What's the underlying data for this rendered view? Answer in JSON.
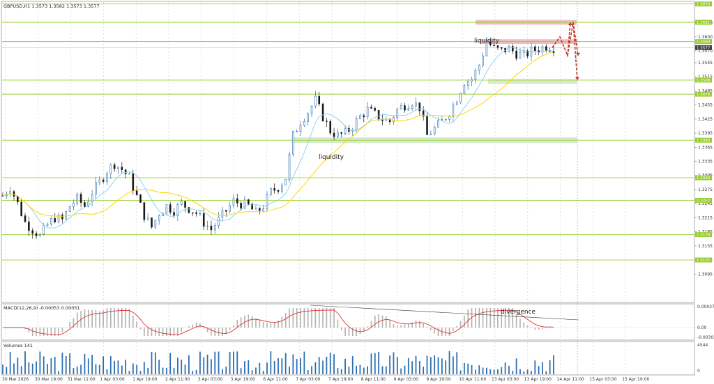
{
  "header": {
    "symbol_info": "GBPUSD,H1  1.3573 1.3582 1.3573 1.3577"
  },
  "price_axis": {
    "ticks": [
      "1.3630",
      "1.3600",
      "1.3570",
      "1.3545",
      "1.3515",
      "1.3485",
      "1.3455",
      "1.3425",
      "1.3395",
      "1.3365",
      "1.3335",
      "1.3305",
      "1.3275",
      "1.3245",
      "1.3215",
      "1.3185",
      "1.3155",
      "1.3125",
      "1.3095"
    ],
    "level_tags": [
      "1.3670",
      "1.3631",
      "1.3590",
      "1.3508",
      "1.3478",
      "1.3380",
      "1.3300",
      "1.3252",
      "1.3179",
      "1.3125"
    ],
    "current_price_tag": "1.3577"
  },
  "time_axis": {
    "labels": [
      "30 Mar 2026",
      "30 Mar 19:00",
      "31 Mar 11:00",
      "1 Apr 03:00",
      "1 Apr 19:00",
      "2 Apr 11:00",
      "3 Apr 03:00",
      "3 Apr 19:00",
      "6 Apr 11:00",
      "7 Apr 03:00",
      "7 Apr 19:00",
      "8 Apr 11:00",
      "9 Apr 03:00",
      "9 Apr 19:00",
      "10 Apr 11:00",
      "13 Apr 03:00",
      "13 Apr 19:00",
      "14 Apr 11:00",
      "15 Apr 03:00",
      "15 Apr 19:00"
    ]
  },
  "annotations": {
    "liquidity_top": "liquidity",
    "liquidity_mid": "liquidity",
    "divergence": "divergence"
  },
  "macd": {
    "label": "MACD(12,26,9) -0.00053 0.00051",
    "ticks": [
      "0.00037",
      "0.00",
      "-0.00302"
    ]
  },
  "volumes": {
    "label": "Volumes 141",
    "ticks": [
      "4544",
      "0"
    ]
  },
  "colors": {
    "up_candle": "#2e6fb0",
    "down_candle": "#1a1a1a",
    "level_line": "#9acd32",
    "resistance_zone": "#e8b4b4",
    "support_zone": "#cfe8c0",
    "ma_fast": "#87ceeb",
    "ma_slow": "#ffd700",
    "forecast_arrow": "#c0392b",
    "macd_hist": "#b0b0b0",
    "macd_signal": "#e03030",
    "volume_bar": "#2e6fb0",
    "tag_bg": "#9acd32",
    "current_tag_bg": "#444444"
  },
  "chart_data": {
    "type": "candlestick",
    "symbol": "GBPUSD",
    "timeframe": "H1",
    "horizontal_levels": [
      1.367,
      1.3631,
      1.359,
      1.3508,
      1.3478,
      1.338,
      1.33,
      1.3252,
      1.3179,
      1.3125
    ],
    "zones": [
      {
        "label": "resistance",
        "from": 1.3626,
        "to": 1.3636
      },
      {
        "label": "liquidity",
        "from": 1.3585,
        "to": 1.3595
      },
      {
        "label": "support",
        "from": 1.35,
        "to": 1.351
      },
      {
        "label": "liquidity",
        "from": 1.3374,
        "to": 1.3386
      }
    ],
    "close_path": [
      [
        0,
        1.3262
      ],
      [
        6,
        1.328
      ],
      [
        12,
        1.3245
      ],
      [
        18,
        1.3205
      ],
      [
        24,
        1.319
      ],
      [
        30,
        1.3176
      ],
      [
        36,
        1.32
      ],
      [
        42,
        1.3215
      ],
      [
        48,
        1.321
      ],
      [
        54,
        1.324
      ],
      [
        60,
        1.3255
      ],
      [
        66,
        1.324
      ],
      [
        72,
        1.327
      ],
      [
        78,
        1.329
      ],
      [
        84,
        1.3315
      ],
      [
        90,
        1.333
      ],
      [
        96,
        1.3318
      ],
      [
        102,
        1.33
      ],
      [
        108,
        1.326
      ],
      [
        114,
        1.322
      ],
      [
        120,
        1.3195
      ],
      [
        126,
        1.3225
      ],
      [
        132,
        1.324
      ],
      [
        138,
        1.323
      ],
      [
        144,
        1.3245
      ],
      [
        150,
        1.3235
      ],
      [
        156,
        1.3225
      ],
      [
        162,
        1.3205
      ],
      [
        168,
        1.319
      ],
      [
        174,
        1.321
      ],
      [
        180,
        1.323
      ],
      [
        186,
        1.325
      ],
      [
        192,
        1.3245
      ],
      [
        198,
        1.324
      ],
      [
        204,
        1.3225
      ],
      [
        210,
        1.324
      ],
      [
        216,
        1.327
      ],
      [
        222,
        1.328
      ],
      [
        228,
        1.33
      ],
      [
        234,
        1.339
      ],
      [
        240,
        1.342
      ],
      [
        246,
        1.344
      ],
      [
        252,
        1.3465
      ],
      [
        258,
        1.343
      ],
      [
        264,
        1.34
      ],
      [
        270,
        1.339
      ],
      [
        276,
        1.3395
      ],
      [
        282,
        1.341
      ],
      [
        288,
        1.343
      ],
      [
        294,
        1.3445
      ],
      [
        300,
        1.3435
      ],
      [
        306,
        1.3425
      ],
      [
        312,
        1.342
      ],
      [
        318,
        1.3445
      ],
      [
        324,
        1.3455
      ],
      [
        330,
        1.3462
      ],
      [
        336,
        1.345
      ],
      [
        342,
        1.339
      ],
      [
        348,
        1.3405
      ],
      [
        354,
        1.342
      ],
      [
        360,
        1.344
      ],
      [
        366,
        1.347
      ],
      [
        372,
        1.3505
      ],
      [
        378,
        1.351
      ],
      [
        384,
        1.354
      ],
      [
        390,
        1.359
      ],
      [
        396,
        1.3575
      ],
      [
        402,
        1.357
      ],
      [
        408,
        1.3575
      ],
      [
        414,
        1.3565
      ],
      [
        420,
        1.356
      ],
      [
        426,
        1.357
      ],
      [
        432,
        1.3575
      ],
      [
        438,
        1.358
      ],
      [
        444,
        1.3577
      ]
    ],
    "forecast_path": [
      1.3577,
      1.36,
      1.356,
      1.3631,
      1.3508
    ],
    "macd_ylim": [
      -0.00302,
      0.00037
    ],
    "volume_ylim": [
      0,
      4544
    ],
    "ylim": [
      1.309,
      1.3675
    ]
  }
}
